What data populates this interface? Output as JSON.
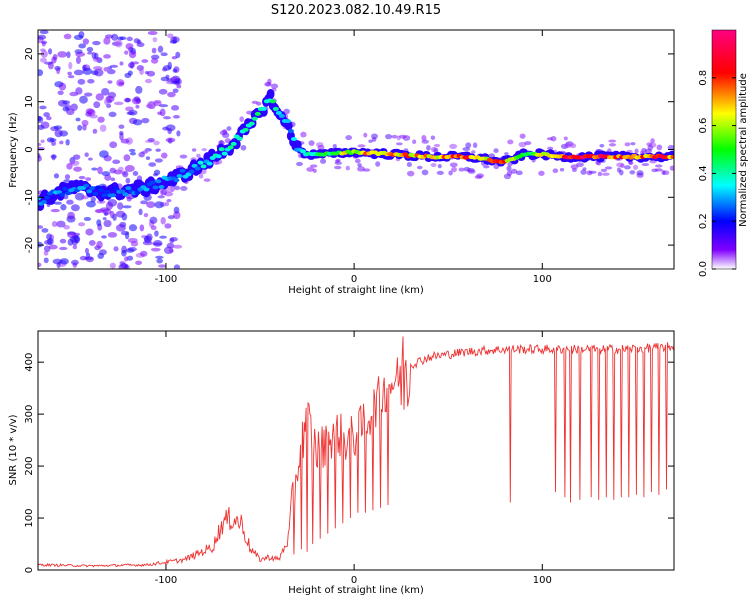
{
  "figure": {
    "title": "S120.2023.082.10.49.R15"
  },
  "chart_data": [
    {
      "type": "heatmap",
      "xlabel": "Height of straight line (km)",
      "ylabel": "Frequency (Hz)",
      "xlim": [
        -168,
        170
      ],
      "ylim": [
        -25,
        25
      ],
      "x_ticks": [
        -100,
        0,
        100
      ],
      "y_ticks": [
        20,
        10,
        0,
        -10,
        -20
      ],
      "colorbar": {
        "label": "Normalized spectral amplitude",
        "ticks": [
          "0.0",
          "0.2",
          "0.4",
          "0.6",
          "0.8"
        ],
        "tick_values": [
          0.0,
          0.2,
          0.4,
          0.6,
          0.8
        ],
        "range": [
          0,
          1
        ],
        "colors": [
          "#ffffff",
          "#0000ff",
          "#00ffff",
          "#00ff00",
          "#ffff00",
          "#ff0000",
          "#ff00ff"
        ]
      },
      "signal_track": {
        "x": [
          -168,
          -150,
          -130,
          -110,
          -95,
          -80,
          -65,
          -55,
          -48,
          -44,
          -40,
          -35,
          -30,
          -25,
          -15,
          0,
          20,
          40,
          60,
          70,
          75,
          80,
          85,
          90,
          95,
          100,
          110,
          130,
          150,
          170
        ],
        "freq_hz": [
          -11,
          -8,
          -9,
          -8,
          -6,
          -3,
          1,
          5,
          9,
          11,
          7,
          5,
          0,
          -1,
          -1,
          -0.5,
          -1,
          -1.5,
          -1.5,
          -2,
          -2.5,
          -2.5,
          -2,
          -1,
          -1,
          -1,
          -1.5,
          -1.5,
          -1.5,
          -1.5
        ],
        "amplitude": [
          0.3,
          0.3,
          0.25,
          0.3,
          0.3,
          0.35,
          0.4,
          0.4,
          0.45,
          0.5,
          0.4,
          0.35,
          0.3,
          0.4,
          0.5,
          0.7,
          0.8,
          0.7,
          0.85,
          0.75,
          0.8,
          0.8,
          0.6,
          0.6,
          0.55,
          0.7,
          0.9,
          0.9,
          0.85,
          0.8
        ]
      }
    },
    {
      "type": "line",
      "xlabel": "Height of straight line (km)",
      "ylabel": "SNR (10 * v/v)",
      "xlim": [
        -168,
        170
      ],
      "ylim": [
        0,
        460
      ],
      "x_ticks": [
        -100,
        0,
        100
      ],
      "y_ticks": [
        0,
        100,
        200,
        300,
        400
      ],
      "color": "#ee3333",
      "envelope": {
        "x": [
          -168,
          -140,
          -110,
          -90,
          -75,
          -70,
          -65,
          -60,
          -55,
          -50,
          -45,
          -40,
          -35,
          -30,
          -25,
          -20,
          -15,
          -10,
          -5,
          0,
          5,
          10,
          15,
          20,
          25,
          30,
          40,
          60,
          80,
          100,
          120,
          140,
          170
        ],
        "snr": [
          10,
          8,
          10,
          20,
          45,
          90,
          100,
          90,
          40,
          20,
          25,
          20,
          60,
          200,
          300,
          230,
          240,
          270,
          250,
          255,
          280,
          310,
          340,
          360,
          375,
          395,
          410,
          420,
          425,
          425,
          425,
          425,
          430
        ]
      },
      "dropouts": {
        "x": [
          -32,
          -28,
          -25,
          -22,
          -18,
          -14,
          -10,
          -6,
          -2,
          2,
          6,
          10,
          14,
          18,
          83,
          107,
          112,
          115,
          120,
          126,
          130,
          134,
          138,
          142,
          146,
          150,
          154,
          158,
          162,
          166
        ],
        "snr": [
          30,
          40,
          35,
          50,
          60,
          70,
          80,
          90,
          100,
          110,
          110,
          115,
          120,
          125,
          130,
          150,
          140,
          130,
          135,
          140,
          135,
          140,
          135,
          140,
          140,
          145,
          140,
          150,
          145,
          155
        ]
      }
    }
  ]
}
